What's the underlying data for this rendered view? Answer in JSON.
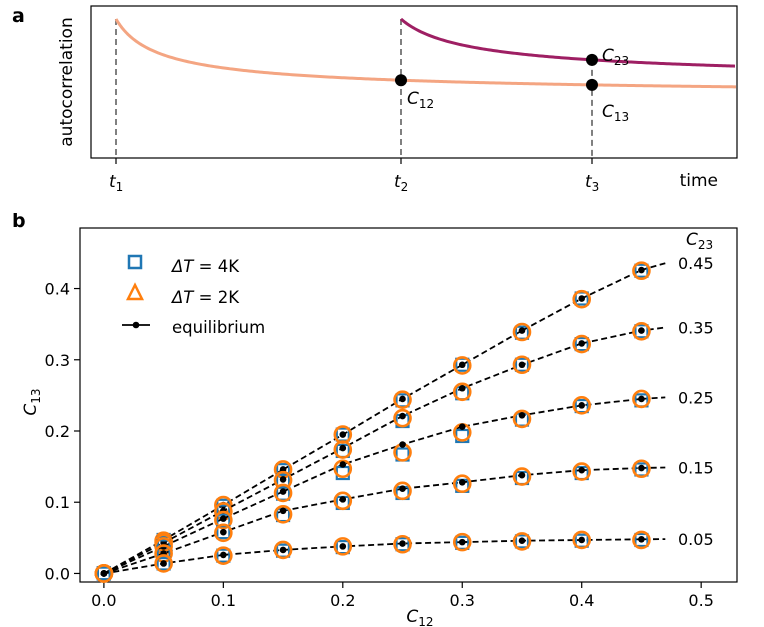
{
  "chart_data": [
    {
      "panel": "a",
      "type": "line",
      "ylabel": "autocorrelation",
      "xlabel": "time",
      "x_ticks": [
        {
          "main": "t",
          "sub": "1"
        },
        {
          "main": "t",
          "sub": "2"
        },
        {
          "main": "t",
          "sub": "3"
        }
      ],
      "point_labels": [
        {
          "main": "C",
          "sub": "12"
        },
        {
          "main": "C",
          "sub": "13"
        },
        {
          "main": "C",
          "sub": "23"
        }
      ],
      "colors": {
        "curve_from_t1": "#f4a582",
        "curve_from_t2": "#9e1f63",
        "markers": "#000000",
        "vlines": "#808080"
      }
    },
    {
      "panel": "b",
      "type": "scatter",
      "xlabel": {
        "main": "C",
        "sub": "12"
      },
      "ylabel": {
        "main": "C",
        "sub": "13"
      },
      "xlim": [
        -0.02,
        0.53
      ],
      "ylim": [
        -0.012,
        0.485
      ],
      "x_ticks": [
        "0.0",
        "0.1",
        "0.2",
        "0.3",
        "0.4",
        "0.5"
      ],
      "y_ticks": [
        "0.0",
        "0.1",
        "0.2",
        "0.3",
        "0.4"
      ],
      "legend_position": "upper-left",
      "legend": [
        {
          "label_pre": "ΔT",
          "label_post": " = 4K",
          "marker": "square",
          "color": "#1f77b4"
        },
        {
          "label_pre": "ΔT",
          "label_post": " = 2K",
          "marker": "triangle",
          "color": "#ff7f0e"
        },
        {
          "label": "equilibrium",
          "marker": "line-dot",
          "color": "#000000"
        }
      ],
      "right_label": {
        "main": "C",
        "sub": "23"
      },
      "x": [
        0.0,
        0.05,
        0.1,
        0.15,
        0.2,
        0.25,
        0.3,
        0.35,
        0.4,
        0.45
      ],
      "series": [
        {
          "c23": "0.45",
          "equilibrium": [
            0.0,
            0.047,
            0.096,
            0.146,
            0.195,
            0.245,
            0.293,
            0.341,
            0.386,
            0.426
          ],
          "dT_4K": [
            0.0,
            0.047,
            0.095,
            0.145,
            0.195,
            0.243,
            0.293,
            0.338,
            0.386,
            0.425
          ],
          "dT_2K": [
            0.0,
            0.046,
            0.096,
            0.146,
            0.195,
            0.244,
            0.292,
            0.339,
            0.385,
            0.425
          ]
        },
        {
          "c23": "0.35",
          "equilibrium": [
            0.0,
            0.043,
            0.088,
            0.132,
            0.176,
            0.221,
            0.26,
            0.293,
            0.323,
            0.341
          ],
          "dT_4K": [
            0.0,
            0.043,
            0.087,
            0.131,
            0.172,
            0.214,
            0.253,
            0.293,
            0.322,
            0.34
          ],
          "dT_2K": [
            0.0,
            0.043,
            0.087,
            0.131,
            0.174,
            0.218,
            0.255,
            0.293,
            0.322,
            0.34
          ]
        },
        {
          "c23": "0.25",
          "equilibrium": [
            0.0,
            0.038,
            0.077,
            0.115,
            0.153,
            0.181,
            0.206,
            0.222,
            0.236,
            0.245
          ],
          "dT_4K": [
            0.0,
            0.038,
            0.074,
            0.112,
            0.141,
            0.167,
            0.193,
            0.216,
            0.235,
            0.243
          ],
          "dT_2K": [
            0.0,
            0.038,
            0.075,
            0.113,
            0.147,
            0.17,
            0.198,
            0.217,
            0.236,
            0.245
          ]
        },
        {
          "c23": "0.15",
          "equilibrium": [
            0.0,
            0.028,
            0.058,
            0.088,
            0.104,
            0.119,
            0.128,
            0.138,
            0.145,
            0.148
          ],
          "dT_4K": [
            0.0,
            0.03,
            0.058,
            0.082,
            0.099,
            0.113,
            0.123,
            0.134,
            0.141,
            0.146
          ],
          "dT_2K": [
            0.0,
            0.028,
            0.057,
            0.083,
            0.102,
            0.116,
            0.126,
            0.136,
            0.143,
            0.147
          ]
        },
        {
          "c23": "0.05",
          "equilibrium": [
            0.0,
            0.014,
            0.026,
            0.033,
            0.038,
            0.042,
            0.044,
            0.046,
            0.047,
            0.048
          ],
          "dT_4K": [
            0.0,
            0.014,
            0.025,
            0.032,
            0.037,
            0.041,
            0.043,
            0.045,
            0.046,
            0.047
          ],
          "dT_2K": [
            0.0,
            0.014,
            0.025,
            0.033,
            0.038,
            0.041,
            0.044,
            0.045,
            0.047,
            0.047
          ]
        }
      ]
    }
  ]
}
